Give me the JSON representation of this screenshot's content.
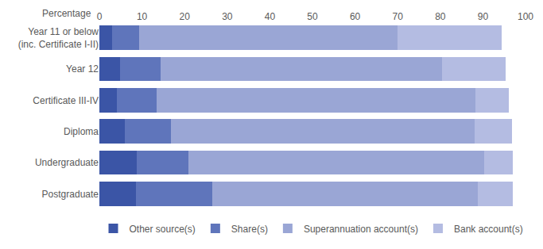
{
  "chart_data": {
    "type": "bar",
    "orientation": "horizontal",
    "stacked": true,
    "grid": false,
    "legend": "bottom",
    "xlabel": "Percentage",
    "categories": [
      "Year 11 or below (inc. Certificate I-II)",
      "Year 12",
      "Certificate III-IV",
      "Diploma",
      "Undergraduate",
      "Postgraduate"
    ],
    "series": [
      {
        "name": "Other source(s)",
        "color": "#3b55a6",
        "values": [
          3.0,
          4.8,
          4.1,
          6.0,
          8.8,
          8.6
        ]
      },
      {
        "name": "Share(s)",
        "color": "#5f75bb",
        "values": [
          6.3,
          9.5,
          9.3,
          10.8,
          12.1,
          17.8
        ]
      },
      {
        "name": "Superannuation account(s)",
        "color": "#9aa6d5",
        "values": [
          60.7,
          66.1,
          74.9,
          71.3,
          69.4,
          62.4
        ]
      },
      {
        "name": "Bank account(s)",
        "color": "#b4bce2",
        "values": [
          24.4,
          14.9,
          7.8,
          8.7,
          6.7,
          8.2
        ]
      }
    ],
    "xlim": [
      0,
      100
    ],
    "xticks": [
      0,
      10,
      20,
      30,
      40,
      50,
      60,
      70,
      80,
      90,
      100
    ]
  }
}
